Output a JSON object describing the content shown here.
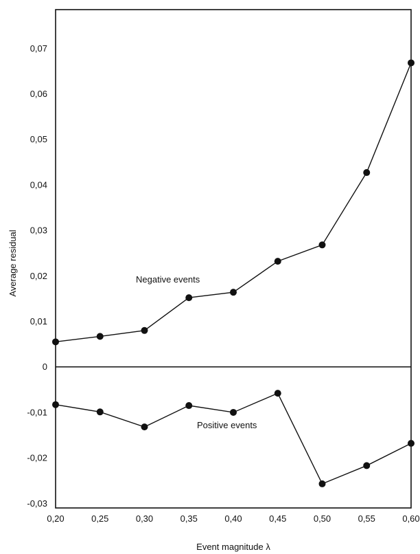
{
  "chart_data": {
    "type": "line",
    "title": "",
    "xlabel": "Event magnitude λ",
    "ylabel": "Average residual",
    "x": [
      0.2,
      0.25,
      0.3,
      0.35,
      0.4,
      0.45,
      0.5,
      0.55,
      0.6
    ],
    "x_tick_labels": [
      "0,20",
      "0,25",
      "0,30",
      "0,35",
      "0,40",
      "0,45",
      "0,50",
      "0,55",
      "0,60"
    ],
    "y_tick_values": [
      0.07,
      0.06,
      0.05,
      0.04,
      0.03,
      0.02,
      0.01,
      0,
      -0.01,
      -0.02,
      -0.03
    ],
    "y_tick_labels": [
      "0,07",
      "0,06",
      "0,05",
      "0,04",
      "0,03",
      "0,02",
      "0,01",
      "0",
      "-0,01",
      "-0,02",
      "-0,03"
    ],
    "xlim": [
      0.2,
      0.6
    ],
    "ylim": [
      -0.031,
      0.0785
    ],
    "grid": false,
    "zero_line": true,
    "series": [
      {
        "name": "Negative events",
        "values": [
          0.0055,
          0.0067,
          0.008,
          0.0152,
          0.0164,
          0.0232,
          0.0268,
          0.0427,
          0.0668
        ]
      },
      {
        "name": "Positive events",
        "values": [
          -0.0083,
          -0.0099,
          -0.0132,
          -0.0085,
          -0.01,
          -0.0058,
          -0.0257,
          -0.0217,
          -0.0168
        ]
      }
    ],
    "annotations": [
      "Negative events",
      "Positive events"
    ]
  }
}
